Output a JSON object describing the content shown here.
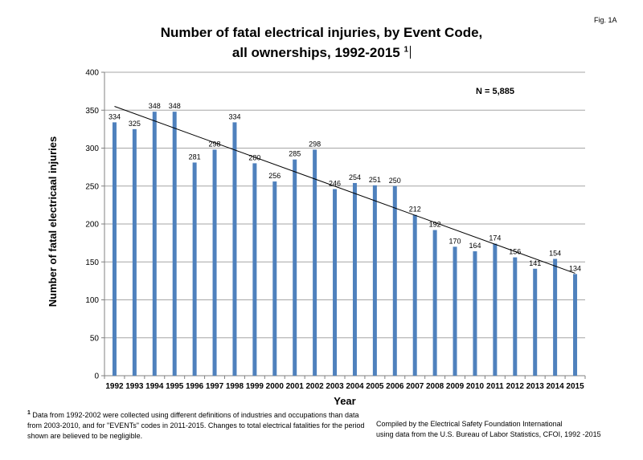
{
  "figure_label": "Fig. 1A",
  "title_line1": "Number of fatal electrical injuries, by Event Code,",
  "title_line2": "all ownerships, 1992-2015",
  "title_footnote_mark": "1",
  "footnote_mark": "1",
  "footnote_text": "Data from 1992-2002 were collected using different definitions of industries and occupations than data from 2003-2010, and for \"EVENTs\" codes in 2011-2015.  Changes to total electrical fatalities for the period shown  are believed to be negligible.",
  "credit_line1": "Compiled by the Electrical Safety Foundation International",
  "credit_line2": "using data from the U.S. Bureau of Labor Statistics, CFOI, 1992 -2015",
  "chart_data": {
    "type": "bar",
    "title": "Number of fatal electrical injuries, by Event Code, all ownerships, 1992-2015",
    "xlabel": "Year",
    "ylabel": "Number of fatal electricaal injuries",
    "ylim": [
      0,
      400
    ],
    "yticks": [
      0,
      50,
      100,
      150,
      200,
      250,
      300,
      350,
      400
    ],
    "grid": true,
    "annotation": "N = 5,885",
    "bar_color": "#4f81bd",
    "trendline": {
      "type": "linear",
      "start": 355,
      "end": 135
    },
    "categories": [
      "1992",
      "1993",
      "1994",
      "1995",
      "1996",
      "1997",
      "1998",
      "1999",
      "2000",
      "2001",
      "2002",
      "2003",
      "2004",
      "2005",
      "2006",
      "2007",
      "2008",
      "2009",
      "2010",
      "2011",
      "2012",
      "2013",
      "2014",
      "2015"
    ],
    "values": [
      334,
      325,
      348,
      348,
      281,
      298,
      334,
      280,
      256,
      285,
      298,
      246,
      254,
      251,
      250,
      212,
      192,
      170,
      164,
      174,
      156,
      141,
      154,
      134
    ]
  }
}
